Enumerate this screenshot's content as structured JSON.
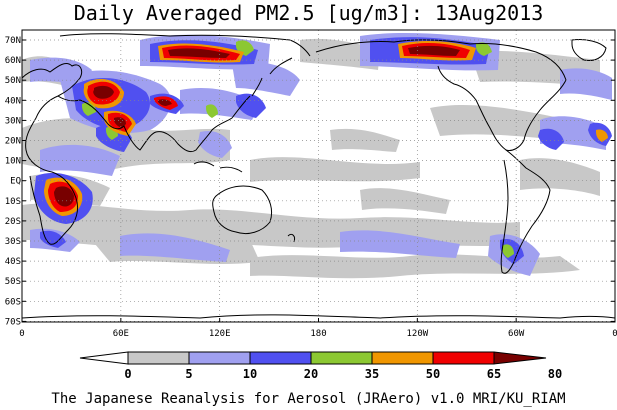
{
  "title": "Daily Averaged PM2.5 [ug/m3]: 13Aug2013",
  "footer": "The Japanese Reanalysis for Aerosol (JRAero) v1.0 MRI/KU_RIAM",
  "map": {
    "lat_labels": [
      "70N",
      "60N",
      "50N",
      "40N",
      "30N",
      "20N",
      "10N",
      "EQ",
      "10S",
      "20S",
      "30S",
      "40S",
      "50S",
      "60S",
      "70S"
    ],
    "lon_labels": [
      "0",
      "60E",
      "120E",
      "180",
      "120W",
      "60W",
      "0"
    ]
  },
  "colorbar": {
    "ticks": [
      "0",
      "5",
      "10",
      "20",
      "35",
      "50",
      "65",
      "80"
    ],
    "colors": [
      "#ffffff",
      "#c8c8c8",
      "#a0a0f0",
      "#5050f0",
      "#8cc832",
      "#f09600",
      "#f00000",
      "#780000"
    ]
  },
  "colors": {
    "coast": "#000000",
    "grid": "#888888",
    "background": "#ffffff"
  }
}
